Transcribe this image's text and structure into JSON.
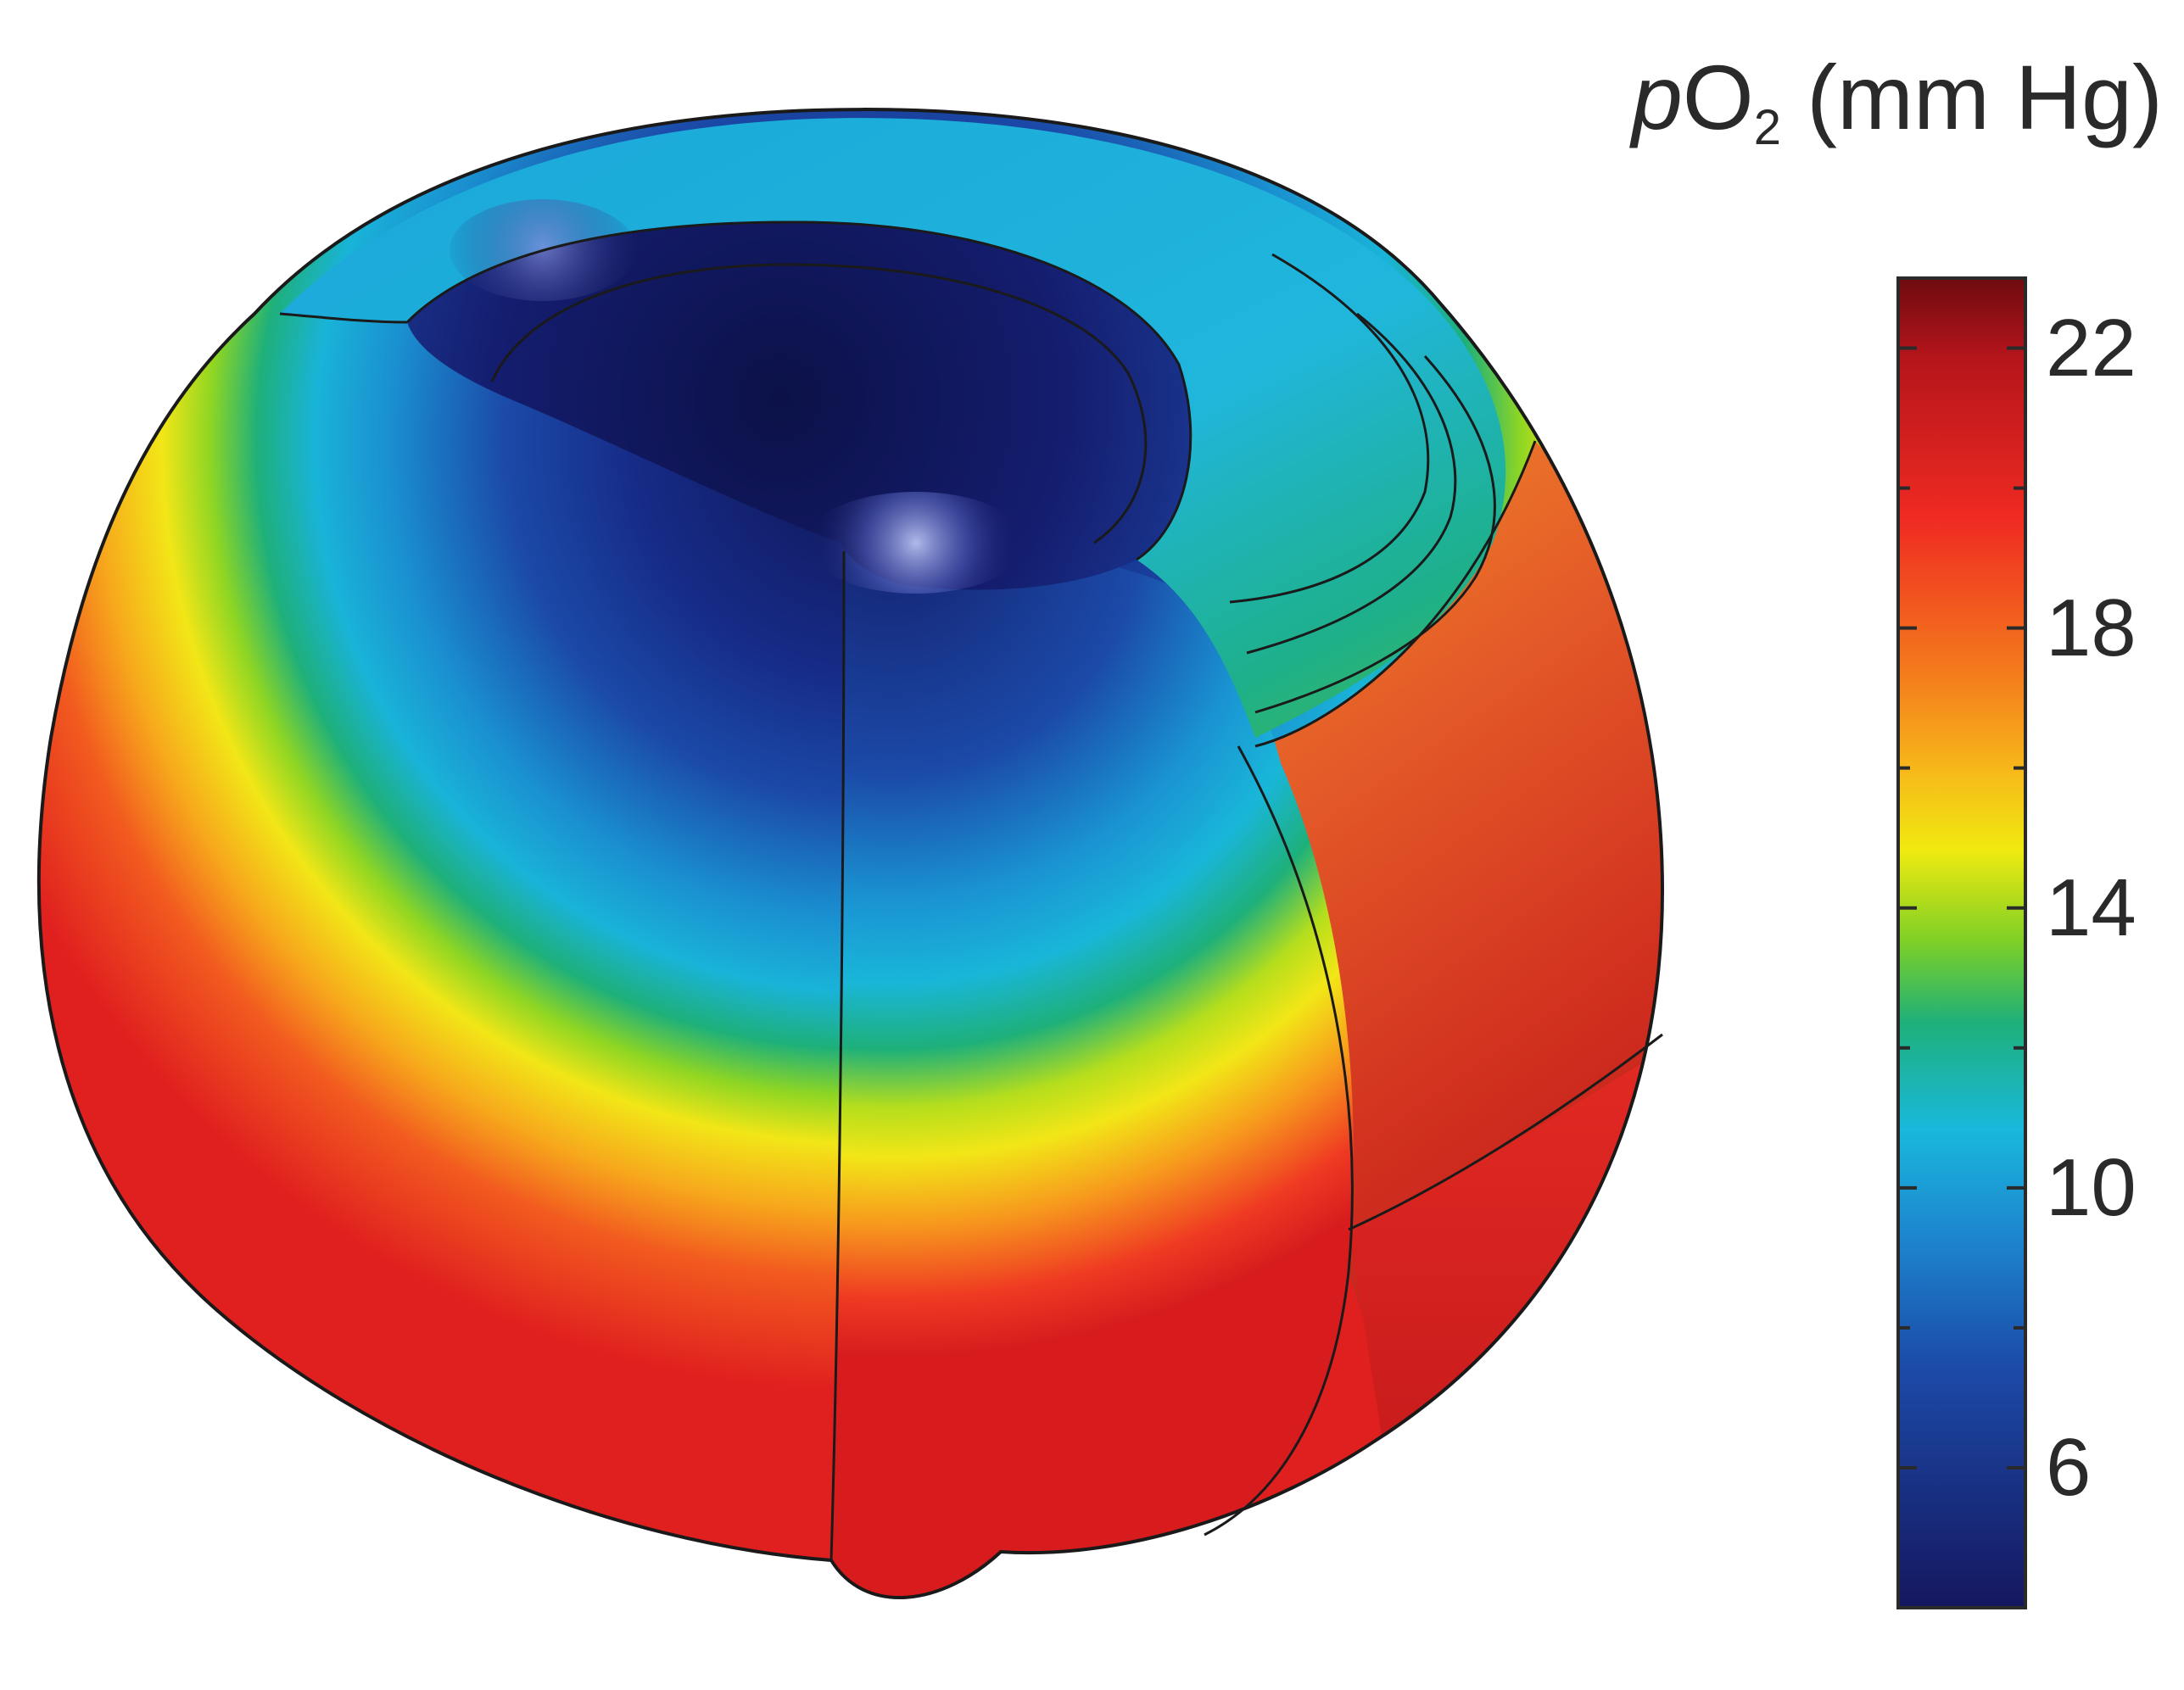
{
  "colorbar": {
    "title_var": "p",
    "title_base": "O",
    "title_sub": "2",
    "title_unit": " (mm Hg)",
    "min": 4,
    "max": 23,
    "ticks": [
      {
        "value": 22,
        "label": "22"
      },
      {
        "value": 18,
        "label": "18"
      },
      {
        "value": 14,
        "label": "14"
      },
      {
        "value": 10,
        "label": "10"
      },
      {
        "value": 6,
        "label": "6"
      }
    ],
    "minor_ticks": [
      20,
      16,
      12,
      8
    ],
    "colormap": [
      "#15175e",
      "#1c3fa8",
      "#1d86cf",
      "#19b8dc",
      "#1eb07a",
      "#7ccf27",
      "#f0ea10",
      "#f79a1d",
      "#ef3a22",
      "#b5151b",
      "#6e0b10"
    ]
  },
  "palette": {
    "hypoxic_core": "#14195f",
    "low": "#1b4aa8",
    "mid_low": "#18a6d8",
    "mid": "#1eb07a",
    "mid_high": "#f2e617",
    "high": "#f2711e",
    "max": "#d01d1e",
    "outline": "#1a1a1a"
  }
}
